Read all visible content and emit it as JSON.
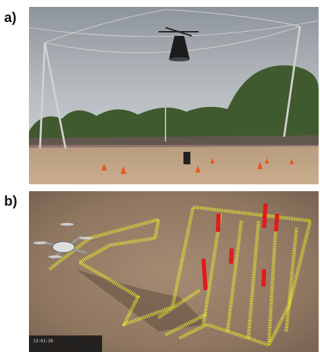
{
  "panels": [
    {
      "label": "a)"
    },
    {
      "label": "b)",
      "timestamp": "13:01:39"
    }
  ]
}
